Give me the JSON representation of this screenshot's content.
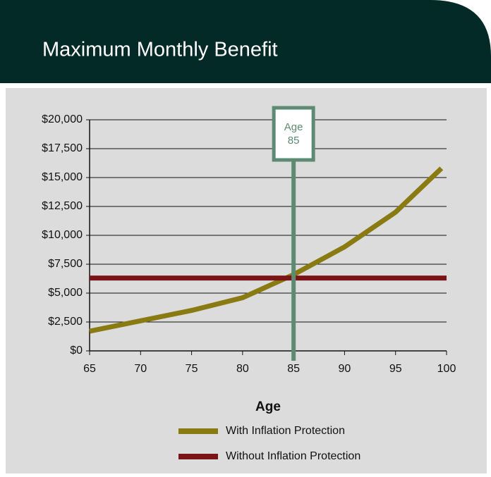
{
  "chart_data": {
    "type": "line",
    "title": "Maximum Monthly Benefit",
    "xlabel": "Age",
    "xlim": [
      65,
      100
    ],
    "xticks": [
      65,
      70,
      75,
      80,
      85,
      90,
      95,
      100
    ],
    "ylim": [
      0,
      20000
    ],
    "yticks": [
      {
        "value": 0,
        "label": "$0"
      },
      {
        "value": 2500,
        "label": "$2,500"
      },
      {
        "value": 5000,
        "label": "$5,000"
      },
      {
        "value": 7500,
        "label": "$7,500"
      },
      {
        "value": 10000,
        "label": "$10,000"
      },
      {
        "value": 12500,
        "label": "$12,500"
      },
      {
        "value": 15000,
        "label": "$15,000"
      },
      {
        "value": 17500,
        "label": "$17,500"
      },
      {
        "value": 20000,
        "label": "$20,000"
      }
    ],
    "grid": true,
    "series": [
      {
        "name": "With Inflation Protection",
        "color": "#8a7a12",
        "x": [
          65,
          70,
          75,
          80,
          85,
          90,
          95,
          99.5
        ],
        "values": [
          1700,
          2600,
          3500,
          4600,
          6600,
          9000,
          12000,
          15800
        ]
      },
      {
        "name": "Without Inflation Protection",
        "color": "#7a1416",
        "x": [
          65,
          100
        ],
        "values": [
          6300,
          6300
        ]
      }
    ],
    "annotation": {
      "x": 85,
      "lines": [
        "Age",
        "85"
      ],
      "color": "#5d8a72"
    }
  }
}
